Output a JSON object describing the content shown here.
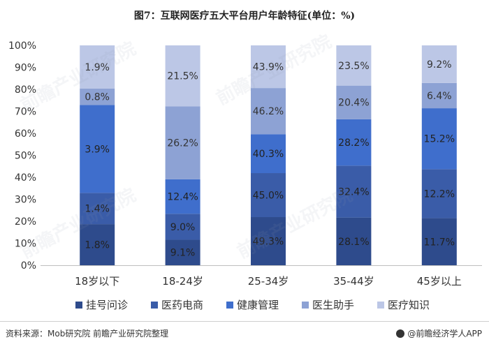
{
  "chart_data": {
    "type": "bar",
    "stacked": true,
    "normalized": true,
    "title": "图7：互联网医疗五大平台用户年龄特征(单位：%)",
    "categories": [
      "18岁以下",
      "18-24岁",
      "25-34岁",
      "35-44岁",
      "45岁以上"
    ],
    "y_ticks": [
      "0%",
      "10%",
      "20%",
      "30%",
      "40%",
      "50%",
      "60%",
      "70%",
      "80%",
      "90%",
      "100%"
    ],
    "ylim": [
      0,
      100
    ],
    "grid": false,
    "legend_position": "bottom",
    "series": [
      {
        "name": "挂号问诊",
        "color": "#2E4B8C",
        "labels": [
          "1.8%",
          "9.1%",
          "49.3%",
          "28.1%",
          "11.7%"
        ],
        "shares": [
          18.7,
          11.6,
          21.9,
          21.7,
          21.4
        ]
      },
      {
        "name": "医药电商",
        "color": "#3A5CA8",
        "labels": [
          "1.4%",
          "9.0%",
          "45.0%",
          "32.4%",
          "12.2%"
        ],
        "shares": [
          14.2,
          11.8,
          20.0,
          23.6,
          22.3
        ]
      },
      {
        "name": "健康管理",
        "color": "#3F6ECC",
        "labels": [
          "3.9%",
          "12.4%",
          "40.3%",
          "28.2%",
          "15.2%"
        ],
        "shares": [
          40.0,
          15.7,
          17.7,
          21.1,
          27.7
        ]
      },
      {
        "name": "医生助手",
        "color": "#8DA2D4",
        "labels": [
          "0.8%",
          "26.2%",
          "46.2%",
          "20.4%",
          "6.4%"
        ],
        "shares": [
          7.5,
          33.2,
          21.0,
          15.3,
          11.5
        ]
      },
      {
        "name": "医疗知识",
        "color": "#BCC7E6",
        "labels": [
          "1.9%",
          "21.5%",
          "43.9%",
          "23.5%",
          "9.2%"
        ],
        "shares": [
          19.6,
          27.7,
          19.4,
          18.3,
          17.1
        ]
      }
    ]
  },
  "footer": {
    "source": "资料来源：Mob研究院 前瞻产业研究院整理",
    "brand": "@前瞻经济学人APP"
  },
  "watermark": "前瞻产业研究院"
}
